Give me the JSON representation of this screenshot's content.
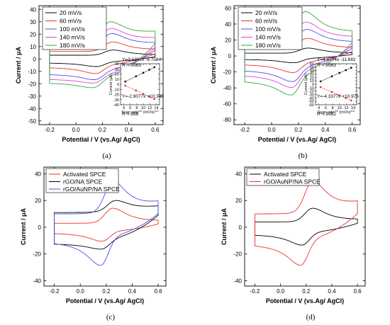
{
  "chart_data": [
    {
      "panel_label": "(a)",
      "type": "line",
      "xlabel": "Potential / V (vs.Ag/ AgCl)",
      "ylabel": "Current / μA",
      "xlim": [
        -0.28,
        0.66
      ],
      "ylim": [
        -53,
        43
      ],
      "xticks": [
        -0.2,
        0.0,
        0.2,
        0.4,
        0.6
      ],
      "xtick_labels": [
        "-0.2",
        "0.0",
        "0.2",
        "0.4",
        "0.6"
      ],
      "yticks": [
        -50,
        -40,
        -30,
        -20,
        -10,
        0,
        10,
        20,
        30,
        40
      ],
      "ytick_labels": [
        "-50",
        "-40",
        "-30",
        "-20",
        "-10",
        "0",
        "10",
        "20",
        "30",
        "40"
      ],
      "legend_position": "top-left",
      "series": [
        {
          "name": "20 mV/s",
          "color": "#000000",
          "cv": {
            "ip": 7.2,
            "ic": -6.5,
            "ep": 0.28,
            "ec": 0.16,
            "bu": 3.0,
            "bl": -3.0,
            "ts": 3
          }
        },
        {
          "name": "60 mV/s",
          "color": "#e8322b",
          "cv": {
            "ip": 13.5,
            "ic": -12.5,
            "ep": 0.275,
            "ec": 0.155,
            "bu": 6.0,
            "bl": -6.5,
            "ts": 7
          }
        },
        {
          "name": "100 mV/s",
          "color": "#4a52e6",
          "cv": {
            "ip": 20.0,
            "ic": -18.0,
            "ep": 0.27,
            "ec": 0.15,
            "bu": 10.0,
            "bl": -12.0,
            "ts": 12
          }
        },
        {
          "name": "140 mV/s",
          "color": "#e23fe0",
          "cv": {
            "ip": 24.0,
            "ic": -21.0,
            "ep": 0.265,
            "ec": 0.145,
            "bu": 13.5,
            "bl": -16.0,
            "ts": 16
          }
        },
        {
          "name": "180 mV/s",
          "color": "#2fa838",
          "cv": {
            "ip": 29.0,
            "ic": -25.0,
            "ep": 0.26,
            "ec": 0.14,
            "bu": 17.0,
            "bl": -19.0,
            "ts": 21
          }
        }
      ],
      "inset": {
        "xlabel": "Scan rate",
        "xlabel_sup": "1/2",
        "xlabel_unit": "(mV/s)",
        "xlabel_unit_sup": "1/2",
        "ylabel": "Current (μA)",
        "xlim": [
          3,
          15
        ],
        "ylim": [
          -40,
          40
        ],
        "xticks": [
          4,
          6,
          8,
          10,
          12,
          14
        ],
        "xtick_labels": [
          "4",
          "6",
          "8",
          "10",
          "12",
          "14"
        ],
        "yticks": [
          -40,
          -30,
          -20,
          -10,
          0,
          10,
          20,
          30,
          40
        ],
        "ytick_labels": [
          "-40",
          "-30",
          "-20",
          "-10",
          "0",
          "10",
          "20",
          "30",
          "40"
        ],
        "upper_eq": "Y=3.1202x -8.7584",
        "upper_r2_prefix": "R",
        "upper_r2_value": "=.9989",
        "lower_eq": "Y=-2.9077x +10.345",
        "lower_r2_prefix": "R",
        "lower_r2_value": "=.998",
        "upper_points": {
          "x": [
            4.47,
            7.75,
            10.0,
            11.83,
            13.42
          ],
          "y": [
            5.2,
            15.4,
            22.4,
            28.2,
            33.1
          ]
        },
        "lower_points": {
          "x": [
            4.47,
            7.75,
            10.0,
            11.83,
            13.42
          ],
          "y": [
            -2.7,
            -12.2,
            -18.7,
            -24.0,
            -28.7
          ]
        },
        "upper_color": "#000000",
        "lower_color": "#e8322b"
      }
    },
    {
      "panel_label": "(b)",
      "type": "line",
      "xlabel": "Potential / V (vs.Ag/ AgCl)",
      "ylabel": "Current / μA",
      "xlim": [
        -0.28,
        0.66
      ],
      "ylim": [
        -86,
        63
      ],
      "xticks": [
        -0.2,
        0.0,
        0.2,
        0.4,
        0.6
      ],
      "xtick_labels": [
        "-0.2",
        "0.0",
        "0.2",
        "0.4",
        "0.6"
      ],
      "yticks": [
        -80,
        -60,
        -40,
        -20,
        0,
        20,
        40,
        60
      ],
      "ytick_labels": [
        "-80",
        "-60",
        "-40",
        "-20",
        "0",
        "20",
        "40",
        "60"
      ],
      "legend_position": "top-left",
      "series": [
        {
          "name": "20 mV/s",
          "color": "#000000",
          "cv": {
            "ip": 10.0,
            "ic": -9.0,
            "ep": 0.27,
            "ec": 0.17,
            "bu": 3.5,
            "bl": -4.0,
            "ts": 3
          }
        },
        {
          "name": "60 mV/s",
          "color": "#e8322b",
          "cv": {
            "ip": 22.0,
            "ic": -22.0,
            "ep": 0.265,
            "ec": 0.165,
            "bu": 9.0,
            "bl": -10.0,
            "ts": 9
          }
        },
        {
          "name": "100 mV/s",
          "color": "#4a52e6",
          "cv": {
            "ip": 33.0,
            "ic": -34.0,
            "ep": 0.26,
            "ec": 0.16,
            "bu": 15.0,
            "bl": -17.0,
            "ts": 16
          }
        },
        {
          "name": "140 mV/s",
          "color": "#e23fe0",
          "cv": {
            "ip": 42.0,
            "ic": -42.0,
            "ep": 0.255,
            "ec": 0.155,
            "bu": 20.0,
            "bl": -23.0,
            "ts": 22
          }
        },
        {
          "name": "180 mV/s",
          "color": "#2fa838",
          "cv": {
            "ip": 55.0,
            "ic": -52.0,
            "ep": 0.25,
            "ec": 0.15,
            "bu": 26.0,
            "bl": -30.0,
            "ts": 28
          }
        }
      ],
      "inset": {
        "xlabel": "Scan rate",
        "xlabel_sup": "1/2",
        "xlabel_unit": "(mV/s)",
        "xlabel_unit_sup": "1/2",
        "ylabel": "Current (μA)",
        "xlim": [
          3,
          15
        ],
        "ylim": [
          -60,
          60
        ],
        "xticks": [
          4,
          6,
          8,
          10,
          12,
          14
        ],
        "xtick_labels": [
          "4",
          "6",
          "8",
          "10",
          "12",
          "14"
        ],
        "yticks": [
          -60,
          -50,
          -40,
          -30,
          -20,
          -10,
          0,
          10,
          20,
          30,
          40,
          50,
          60
        ],
        "ytick_labels": [
          "-60",
          "-50",
          "-40",
          "-30",
          "-20",
          "-10",
          "0",
          "10",
          "20",
          "30",
          "40",
          "50",
          "60"
        ],
        "upper_eq": "Y=4.4774x -11.682",
        "upper_r2_prefix": "R",
        "upper_r2_value": "=.9983",
        "lower_eq": "Y=-4.3377x +10.976",
        "lower_r2_prefix": "R",
        "lower_r2_value": "=.9982",
        "upper_points": {
          "x": [
            4.47,
            7.75,
            10.0,
            11.83,
            13.42
          ],
          "y": [
            8.3,
            23.0,
            33.1,
            41.3,
            48.4
          ]
        },
        "lower_points": {
          "x": [
            4.47,
            7.75,
            10.0,
            11.83,
            13.42
          ],
          "y": [
            -8.4,
            -22.6,
            -32.4,
            -40.3,
            -47.2
          ]
        },
        "upper_color": "#000000",
        "lower_color": "#e8322b"
      }
    },
    {
      "panel_label": "(c)",
      "type": "line",
      "xlabel": "Potential / V (vs.Ag/ AgCl)",
      "ylabel": "Current / μA",
      "xlim": [
        -0.28,
        0.66
      ],
      "ylim": [
        -44,
        45
      ],
      "xticks": [
        -0.2,
        0.0,
        0.2,
        0.4,
        0.6
      ],
      "xtick_labels": [
        "-0.2",
        "0.0",
        "0.2",
        "0.4",
        "0.6"
      ],
      "yticks": [
        -40,
        -20,
        0,
        20,
        40
      ],
      "ytick_labels": [
        "-40",
        "-20",
        "0",
        "20",
        "40"
      ],
      "legend_position": "top-left",
      "series": [
        {
          "name": "Activated SPCE",
          "color": "#e8322b",
          "cv": {
            "ip": 14.0,
            "ic": -11.0,
            "ep": 0.25,
            "ec": 0.17,
            "bu": 3.0,
            "bl": -4.0,
            "ts": 4
          }
        },
        {
          "name": "rGO/NA SPCE",
          "color": "#000000",
          "cv": {
            "ip": 19.0,
            "ic": -18.0,
            "ep": 0.27,
            "ec": 0.17,
            "bu": 11.0,
            "bl": -12.0,
            "ts": 15
          }
        },
        {
          "name": "rGO/AuNP/NA SPCE",
          "color": "#4a52e6",
          "cv": {
            "ip": 33.0,
            "ic": -30.0,
            "ep": 0.25,
            "ec": 0.16,
            "bu": 10.0,
            "bl": -10.0,
            "ts": 17
          }
        }
      ]
    },
    {
      "panel_label": "(d)",
      "type": "line",
      "xlabel": "Potential / V (vs.Ag/ AgCl)",
      "ylabel": "Current / μA",
      "xlim": [
        -0.28,
        0.66
      ],
      "ylim": [
        -44,
        45
      ],
      "xticks": [
        -0.2,
        0.0,
        0.2,
        0.4,
        0.6
      ],
      "xtick_labels": [
        "-0.2",
        "0.0",
        "0.2",
        "0.4",
        "0.6"
      ],
      "yticks": [
        -40,
        -20,
        0,
        20,
        40
      ],
      "ytick_labels": [
        "-40",
        "-20",
        "0",
        "20",
        "40"
      ],
      "legend_position": "top-left",
      "series": [
        {
          "name": "Activated SPCE",
          "color": "#000000",
          "cv": {
            "ip": 14.0,
            "ic": -14.0,
            "ep": 0.25,
            "ec": 0.17,
            "bu": 4.0,
            "bl": -5.0,
            "ts": 5
          }
        },
        {
          "name": "rGO/AuNP/NA SPCE",
          "color": "#e8322b",
          "cv": {
            "ip": 33.0,
            "ic": -30.0,
            "ep": 0.25,
            "ec": 0.16,
            "bu": 10.0,
            "bl": -12.0,
            "ts": 17
          }
        }
      ]
    }
  ]
}
